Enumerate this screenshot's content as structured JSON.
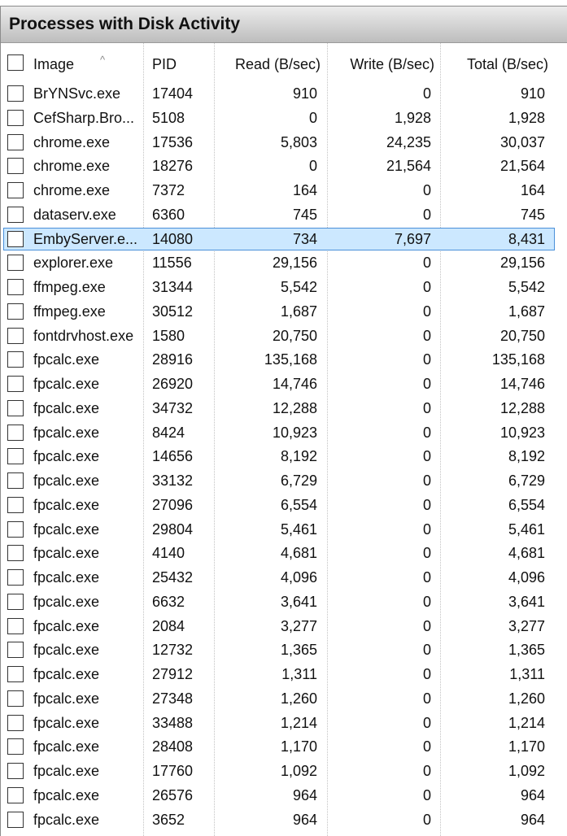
{
  "window": {
    "title": "Processes with Disk Activity"
  },
  "table": {
    "columns": [
      "Image",
      "PID",
      "Read (B/sec)",
      "Write (B/sec)",
      "Total (B/sec)"
    ],
    "selected_index": 6,
    "rows": [
      {
        "image": "BrYNSvc.exe",
        "pid": "17404",
        "read": "910",
        "write": "0",
        "total": "910"
      },
      {
        "image": "CefSharp.Bro...",
        "pid": "5108",
        "read": "0",
        "write": "1,928",
        "total": "1,928"
      },
      {
        "image": "chrome.exe",
        "pid": "17536",
        "read": "5,803",
        "write": "24,235",
        "total": "30,037"
      },
      {
        "image": "chrome.exe",
        "pid": "18276",
        "read": "0",
        "write": "21,564",
        "total": "21,564"
      },
      {
        "image": "chrome.exe",
        "pid": "7372",
        "read": "164",
        "write": "0",
        "total": "164"
      },
      {
        "image": "dataserv.exe",
        "pid": "6360",
        "read": "745",
        "write": "0",
        "total": "745"
      },
      {
        "image": "EmbyServer.e...",
        "pid": "14080",
        "read": "734",
        "write": "7,697",
        "total": "8,431"
      },
      {
        "image": "explorer.exe",
        "pid": "11556",
        "read": "29,156",
        "write": "0",
        "total": "29,156"
      },
      {
        "image": "ffmpeg.exe",
        "pid": "31344",
        "read": "5,542",
        "write": "0",
        "total": "5,542"
      },
      {
        "image": "ffmpeg.exe",
        "pid": "30512",
        "read": "1,687",
        "write": "0",
        "total": "1,687"
      },
      {
        "image": "fontdrvhost.exe",
        "pid": "1580",
        "read": "20,750",
        "write": "0",
        "total": "20,750"
      },
      {
        "image": "fpcalc.exe",
        "pid": "28916",
        "read": "135,168",
        "write": "0",
        "total": "135,168"
      },
      {
        "image": "fpcalc.exe",
        "pid": "26920",
        "read": "14,746",
        "write": "0",
        "total": "14,746"
      },
      {
        "image": "fpcalc.exe",
        "pid": "34732",
        "read": "12,288",
        "write": "0",
        "total": "12,288"
      },
      {
        "image": "fpcalc.exe",
        "pid": "8424",
        "read": "10,923",
        "write": "0",
        "total": "10,923"
      },
      {
        "image": "fpcalc.exe",
        "pid": "14656",
        "read": "8,192",
        "write": "0",
        "total": "8,192"
      },
      {
        "image": "fpcalc.exe",
        "pid": "33132",
        "read": "6,729",
        "write": "0",
        "total": "6,729"
      },
      {
        "image": "fpcalc.exe",
        "pid": "27096",
        "read": "6,554",
        "write": "0",
        "total": "6,554"
      },
      {
        "image": "fpcalc.exe",
        "pid": "29804",
        "read": "5,461",
        "write": "0",
        "total": "5,461"
      },
      {
        "image": "fpcalc.exe",
        "pid": "4140",
        "read": "4,681",
        "write": "0",
        "total": "4,681"
      },
      {
        "image": "fpcalc.exe",
        "pid": "25432",
        "read": "4,096",
        "write": "0",
        "total": "4,096"
      },
      {
        "image": "fpcalc.exe",
        "pid": "6632",
        "read": "3,641",
        "write": "0",
        "total": "3,641"
      },
      {
        "image": "fpcalc.exe",
        "pid": "2084",
        "read": "3,277",
        "write": "0",
        "total": "3,277"
      },
      {
        "image": "fpcalc.exe",
        "pid": "12732",
        "read": "1,365",
        "write": "0",
        "total": "1,365"
      },
      {
        "image": "fpcalc.exe",
        "pid": "27912",
        "read": "1,311",
        "write": "0",
        "total": "1,311"
      },
      {
        "image": "fpcalc.exe",
        "pid": "27348",
        "read": "1,260",
        "write": "0",
        "total": "1,260"
      },
      {
        "image": "fpcalc.exe",
        "pid": "33488",
        "read": "1,214",
        "write": "0",
        "total": "1,214"
      },
      {
        "image": "fpcalc.exe",
        "pid": "28408",
        "read": "1,170",
        "write": "0",
        "total": "1,170"
      },
      {
        "image": "fpcalc.exe",
        "pid": "17760",
        "read": "1,092",
        "write": "0",
        "total": "1,092"
      },
      {
        "image": "fpcalc.exe",
        "pid": "26576",
        "read": "964",
        "write": "0",
        "total": "964"
      },
      {
        "image": "fpcalc.exe",
        "pid": "3652",
        "read": "964",
        "write": "0",
        "total": "964"
      }
    ]
  }
}
